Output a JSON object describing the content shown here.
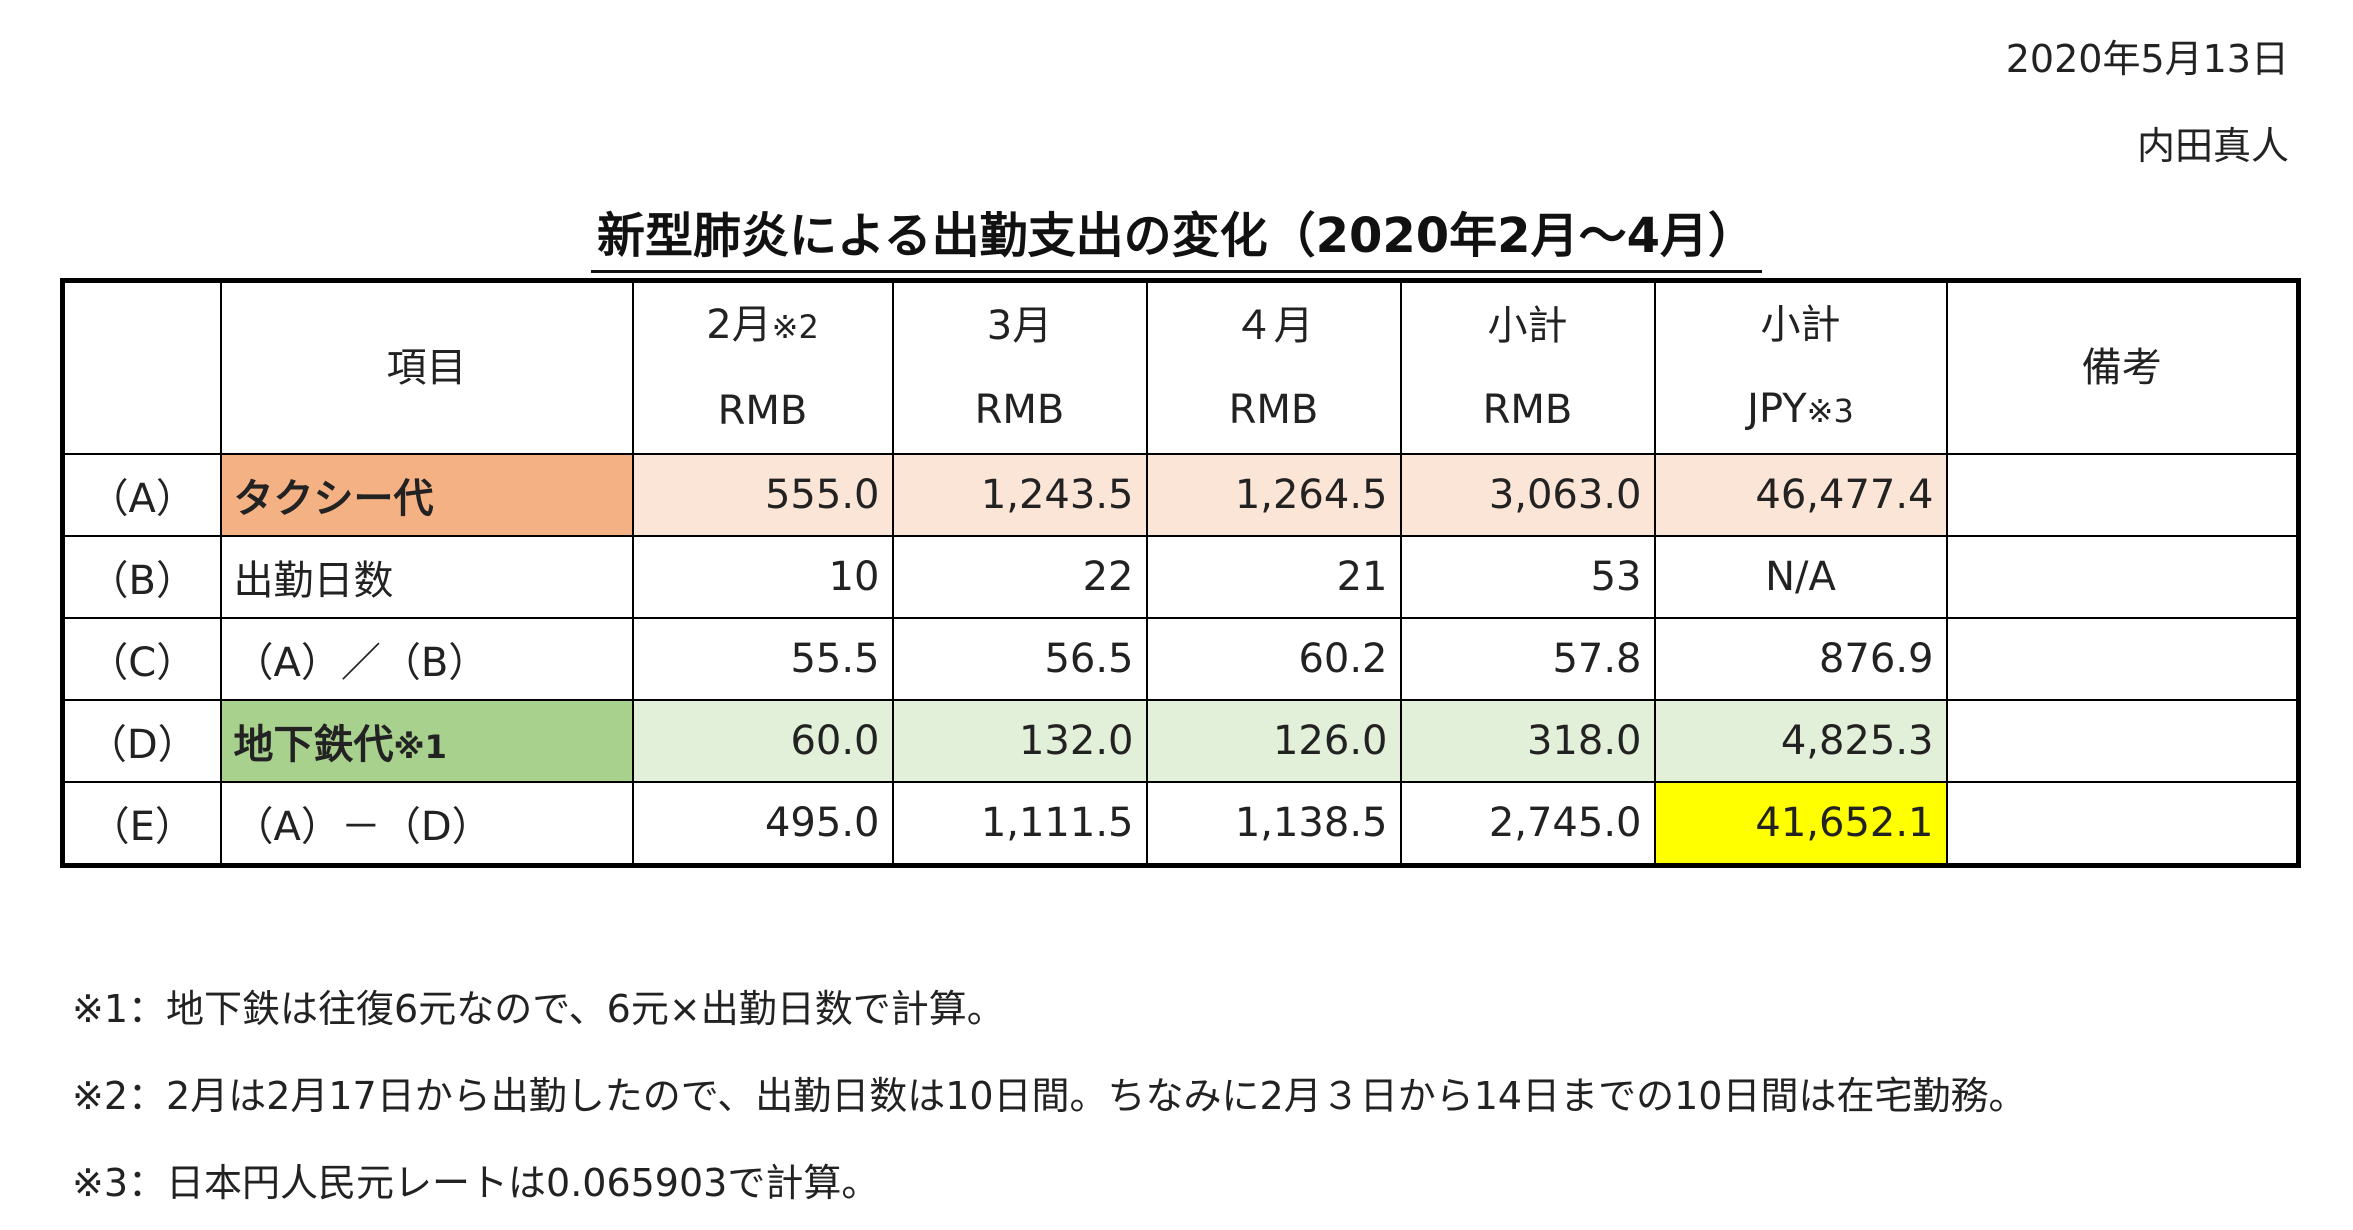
{
  "date": "2020年5月13日",
  "author": "内田真人",
  "title": "新型肺炎による出勤支出の変化（2020年2月～4月）",
  "table": {
    "header": {
      "item": "項目",
      "feb": "2月",
      "feb_note": "※2",
      "feb_unit": "RMB",
      "mar": "3月",
      "mar_unit": "RMB",
      "apr": "４月",
      "apr_unit": "RMB",
      "sub_rmb": "小計",
      "sub_rmb_unit": "RMB",
      "sub_jpy": "小計",
      "sub_jpy_unit": "JPY",
      "sub_jpy_note": "※3",
      "remarks": "備考"
    },
    "rows": [
      {
        "label": "（A）",
        "item": "タクシー代",
        "item_note": "",
        "feb": "555.0",
        "mar": "1,243.5",
        "apr": "1,264.5",
        "sub_rmb": "3,063.0",
        "sub_jpy": "46,477.4",
        "remarks": ""
      },
      {
        "label": "（B）",
        "item": "出勤日数",
        "item_note": "",
        "feb": "10",
        "mar": "22",
        "apr": "21",
        "sub_rmb": "53",
        "sub_jpy": "N/A",
        "remarks": ""
      },
      {
        "label": "（C）",
        "item": "（A）／（B）",
        "item_note": "",
        "feb": "55.5",
        "mar": "56.5",
        "apr": "60.2",
        "sub_rmb": "57.8",
        "sub_jpy": "876.9",
        "remarks": ""
      },
      {
        "label": "（D）",
        "item": "地下鉄代",
        "item_note": "※1",
        "feb": "60.0",
        "mar": "132.0",
        "apr": "126.0",
        "sub_rmb": "318.0",
        "sub_jpy": "4,825.3",
        "remarks": ""
      },
      {
        "label": "（E）",
        "item": "（A）－（D）",
        "item_note": "",
        "feb": "495.0",
        "mar": "1,111.5",
        "apr": "1,138.5",
        "sub_rmb": "2,745.0",
        "sub_jpy": "41,652.1",
        "remarks": ""
      }
    ]
  },
  "notes": [
    "※1：地下鉄は往復6元なので、6元×出勤日数で計算。",
    "※2：2月は2月17日から出勤したので、出勤日数は10日間。ちなみに2月３日から14日までの10日間は在宅勤務。",
    "※3：日本円人民元レートは0.065903で計算。"
  ],
  "colors": {
    "taxi_label": "#f4b183",
    "taxi_cells": "#fbe5d6",
    "metro_label": "#a9d18e",
    "metro_cells": "#e2f0d9",
    "highlight": "#ffff00"
  }
}
